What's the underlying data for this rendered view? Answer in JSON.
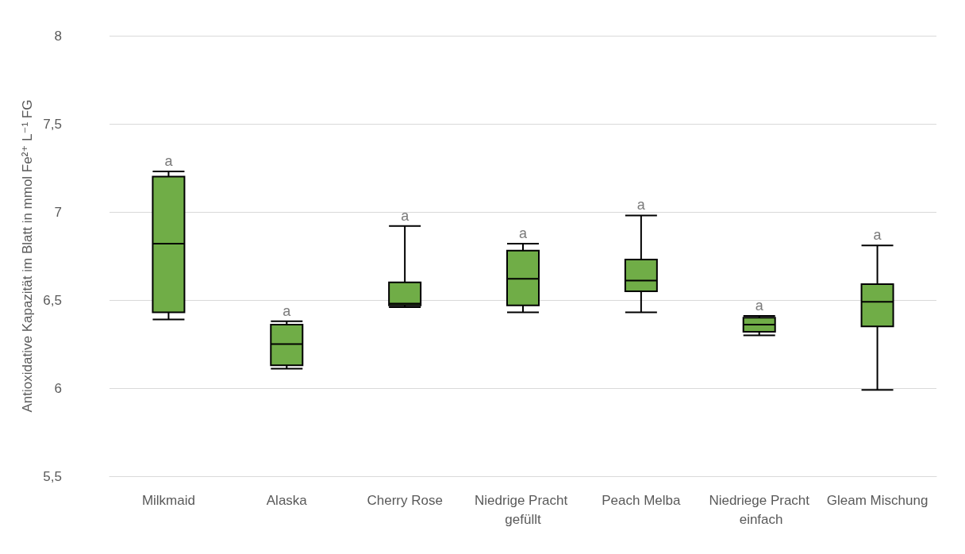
{
  "chart_data": {
    "type": "box",
    "ylabel": "Antioxidative Kapazität im Blatt in mmol Fe²⁺ L⁻¹ FG",
    "categories": [
      "Milkmaid",
      "Alaska",
      "Cherry Rose",
      "Niedrige Pracht gefüllt",
      "Peach Melba",
      "Niedriege Pracht einfach",
      "Gleam Mischung"
    ],
    "series": [
      {
        "color": "#70ad47",
        "boxes": [
          {
            "low": 6.39,
            "q1": 6.43,
            "median": 6.82,
            "q3": 7.2,
            "high": 7.23
          },
          {
            "low": 6.11,
            "q1": 6.13,
            "median": 6.25,
            "q3": 6.36,
            "high": 6.38
          },
          {
            "low": 6.46,
            "q1": 6.47,
            "median": 6.48,
            "q3": 6.6,
            "high": 6.92
          },
          {
            "low": 6.43,
            "q1": 6.47,
            "median": 6.62,
            "q3": 6.78,
            "high": 6.82
          },
          {
            "low": 6.43,
            "q1": 6.55,
            "median": 6.61,
            "q3": 6.73,
            "high": 6.98
          },
          {
            "low": 6.3,
            "q1": 6.32,
            "median": 6.36,
            "q3": 6.4,
            "high": 6.41
          },
          {
            "low": 5.99,
            "q1": 6.35,
            "median": 6.49,
            "q3": 6.59,
            "high": 6.81
          }
        ]
      }
    ],
    "ylim": [
      5.5,
      8
    ],
    "yticks": [
      {
        "value": 5.5,
        "label": "5,5"
      },
      {
        "value": 6,
        "label": "6"
      },
      {
        "value": 6.5,
        "label": "6,5"
      },
      {
        "value": 7,
        "label": "7"
      },
      {
        "value": 7.5,
        "label": "7,5"
      },
      {
        "value": 8,
        "label": "8"
      }
    ],
    "grid": "y",
    "annotations": [
      {
        "text": "a",
        "x": "Milkmaid",
        "y": 7.23
      },
      {
        "text": "a",
        "x": "Alaska",
        "y": 6.38
      },
      {
        "text": "a",
        "x": "Cherry Rose",
        "y": 6.92
      },
      {
        "text": "a",
        "x": "Niedrige Pracht gefüllt",
        "y": 6.82
      },
      {
        "text": "a",
        "x": "Peach Melba",
        "y": 6.98
      },
      {
        "text": "a",
        "x": "Niedriege Pracht einfach",
        "y": 6.41
      },
      {
        "text": "a",
        "x": "Gleam Mischung",
        "y": 6.81
      }
    ]
  }
}
